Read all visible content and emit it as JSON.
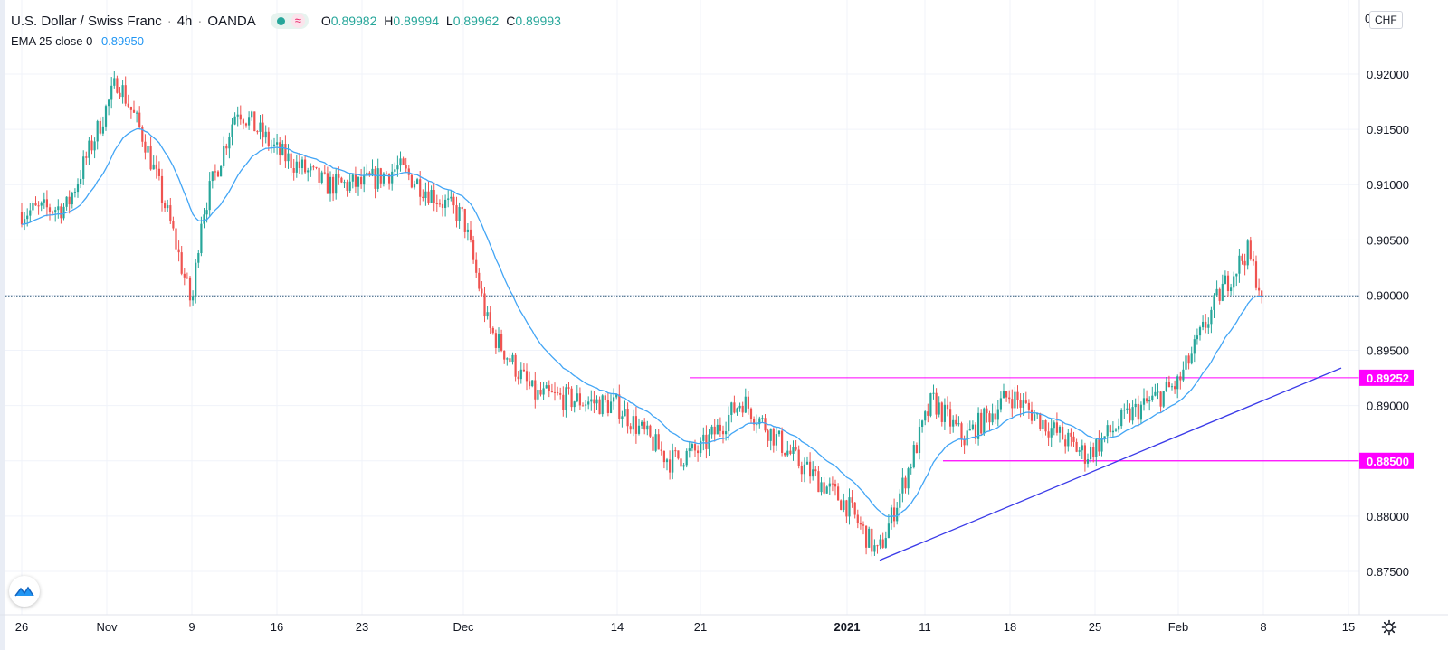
{
  "header": {
    "symbol": "U.S. Dollar / Swiss Franc",
    "interval": "4h",
    "broker": "OANDA",
    "ohlc": {
      "o_label": "O",
      "o": "0.89982",
      "h_label": "H",
      "h": "0.89994",
      "l_label": "L",
      "l": "0.89962",
      "c_label": "C",
      "c": "0.89993"
    },
    "status_icons": [
      "market-open-dot-icon",
      "replay-wave-icon"
    ]
  },
  "indicator": {
    "label": "EMA 25 close 0",
    "value": "0.89950"
  },
  "currency_badge": "CHF",
  "price_axis_top_label": "0",
  "colors": {
    "up": "#26a69a",
    "down": "#ef5350",
    "ema": "#42a5f5",
    "level_line": "#ff00ff",
    "trendline": "#3a3ae8",
    "current_price": "#4a6e8a"
  },
  "chart_data": {
    "type": "candlestick",
    "series": [
      {
        "name": "EMA 25 close 0",
        "type": "line"
      }
    ],
    "ylim": [
      0.8725,
      0.9215
    ],
    "y_ticks": [
      "0.92000",
      "0.91500",
      "0.91000",
      "0.90500",
      "0.90000",
      "0.89500",
      "0.89000",
      "0.88500",
      "0.88000",
      "0.87500"
    ],
    "x_ticks": [
      "26",
      "Nov",
      "9",
      "16",
      "23",
      "Dec",
      "14",
      "21",
      "2021",
      "11",
      "18",
      "25",
      "Feb",
      "8",
      "15"
    ],
    "anchors": [
      {
        "t": "26",
        "y": 0.9075
      },
      {
        "t": "30",
        "y": 0.908
      },
      {
        "t": "Nov",
        "y": 0.9195
      },
      {
        "t": "4",
        "y": 0.914
      },
      {
        "t": "7",
        "y": 0.906
      },
      {
        "t": "9",
        "y": 0.899
      },
      {
        "t": "10",
        "y": 0.907
      },
      {
        "t": "12",
        "y": 0.917
      },
      {
        "t": "16",
        "y": 0.913
      },
      {
        "t": "19",
        "y": 0.91
      },
      {
        "t": "23",
        "y": 0.91
      },
      {
        "t": "26",
        "y": 0.9115
      },
      {
        "t": "Dec",
        "y": 0.907
      },
      {
        "t": "3",
        "y": 0.897
      },
      {
        "t": "7",
        "y": 0.891
      },
      {
        "t": "14",
        "y": 0.89
      },
      {
        "t": "18",
        "y": 0.885
      },
      {
        "t": "21",
        "y": 0.886
      },
      {
        "t": "25",
        "y": 0.8905
      },
      {
        "t": "29",
        "y": 0.885
      },
      {
        "t": "2021",
        "y": 0.881
      },
      {
        "t": "5",
        "y": 0.8765
      },
      {
        "t": "7",
        "y": 0.881
      },
      {
        "t": "11",
        "y": 0.8905
      },
      {
        "t": "14",
        "y": 0.887
      },
      {
        "t": "18",
        "y": 0.891
      },
      {
        "t": "22",
        "y": 0.888
      },
      {
        "t": "25",
        "y": 0.8855
      },
      {
        "t": "29",
        "y": 0.889
      },
      {
        "t": "Feb",
        "y": 0.892
      },
      {
        "t": "4",
        "y": 0.9005
      },
      {
        "t": "6",
        "y": 0.904
      },
      {
        "t": "8",
        "y": 0.8998
      }
    ],
    "levels": [
      {
        "label": "0.89252",
        "value": 0.89252
      },
      {
        "label": "0.88500",
        "value": 0.885
      }
    ],
    "current_price": 0.89993,
    "trendline": [
      {
        "t": "5 Jan",
        "y": 0.876
      },
      {
        "t": "14 Feb",
        "y": 0.8934
      }
    ],
    "grid": true,
    "legend": "top-left"
  }
}
